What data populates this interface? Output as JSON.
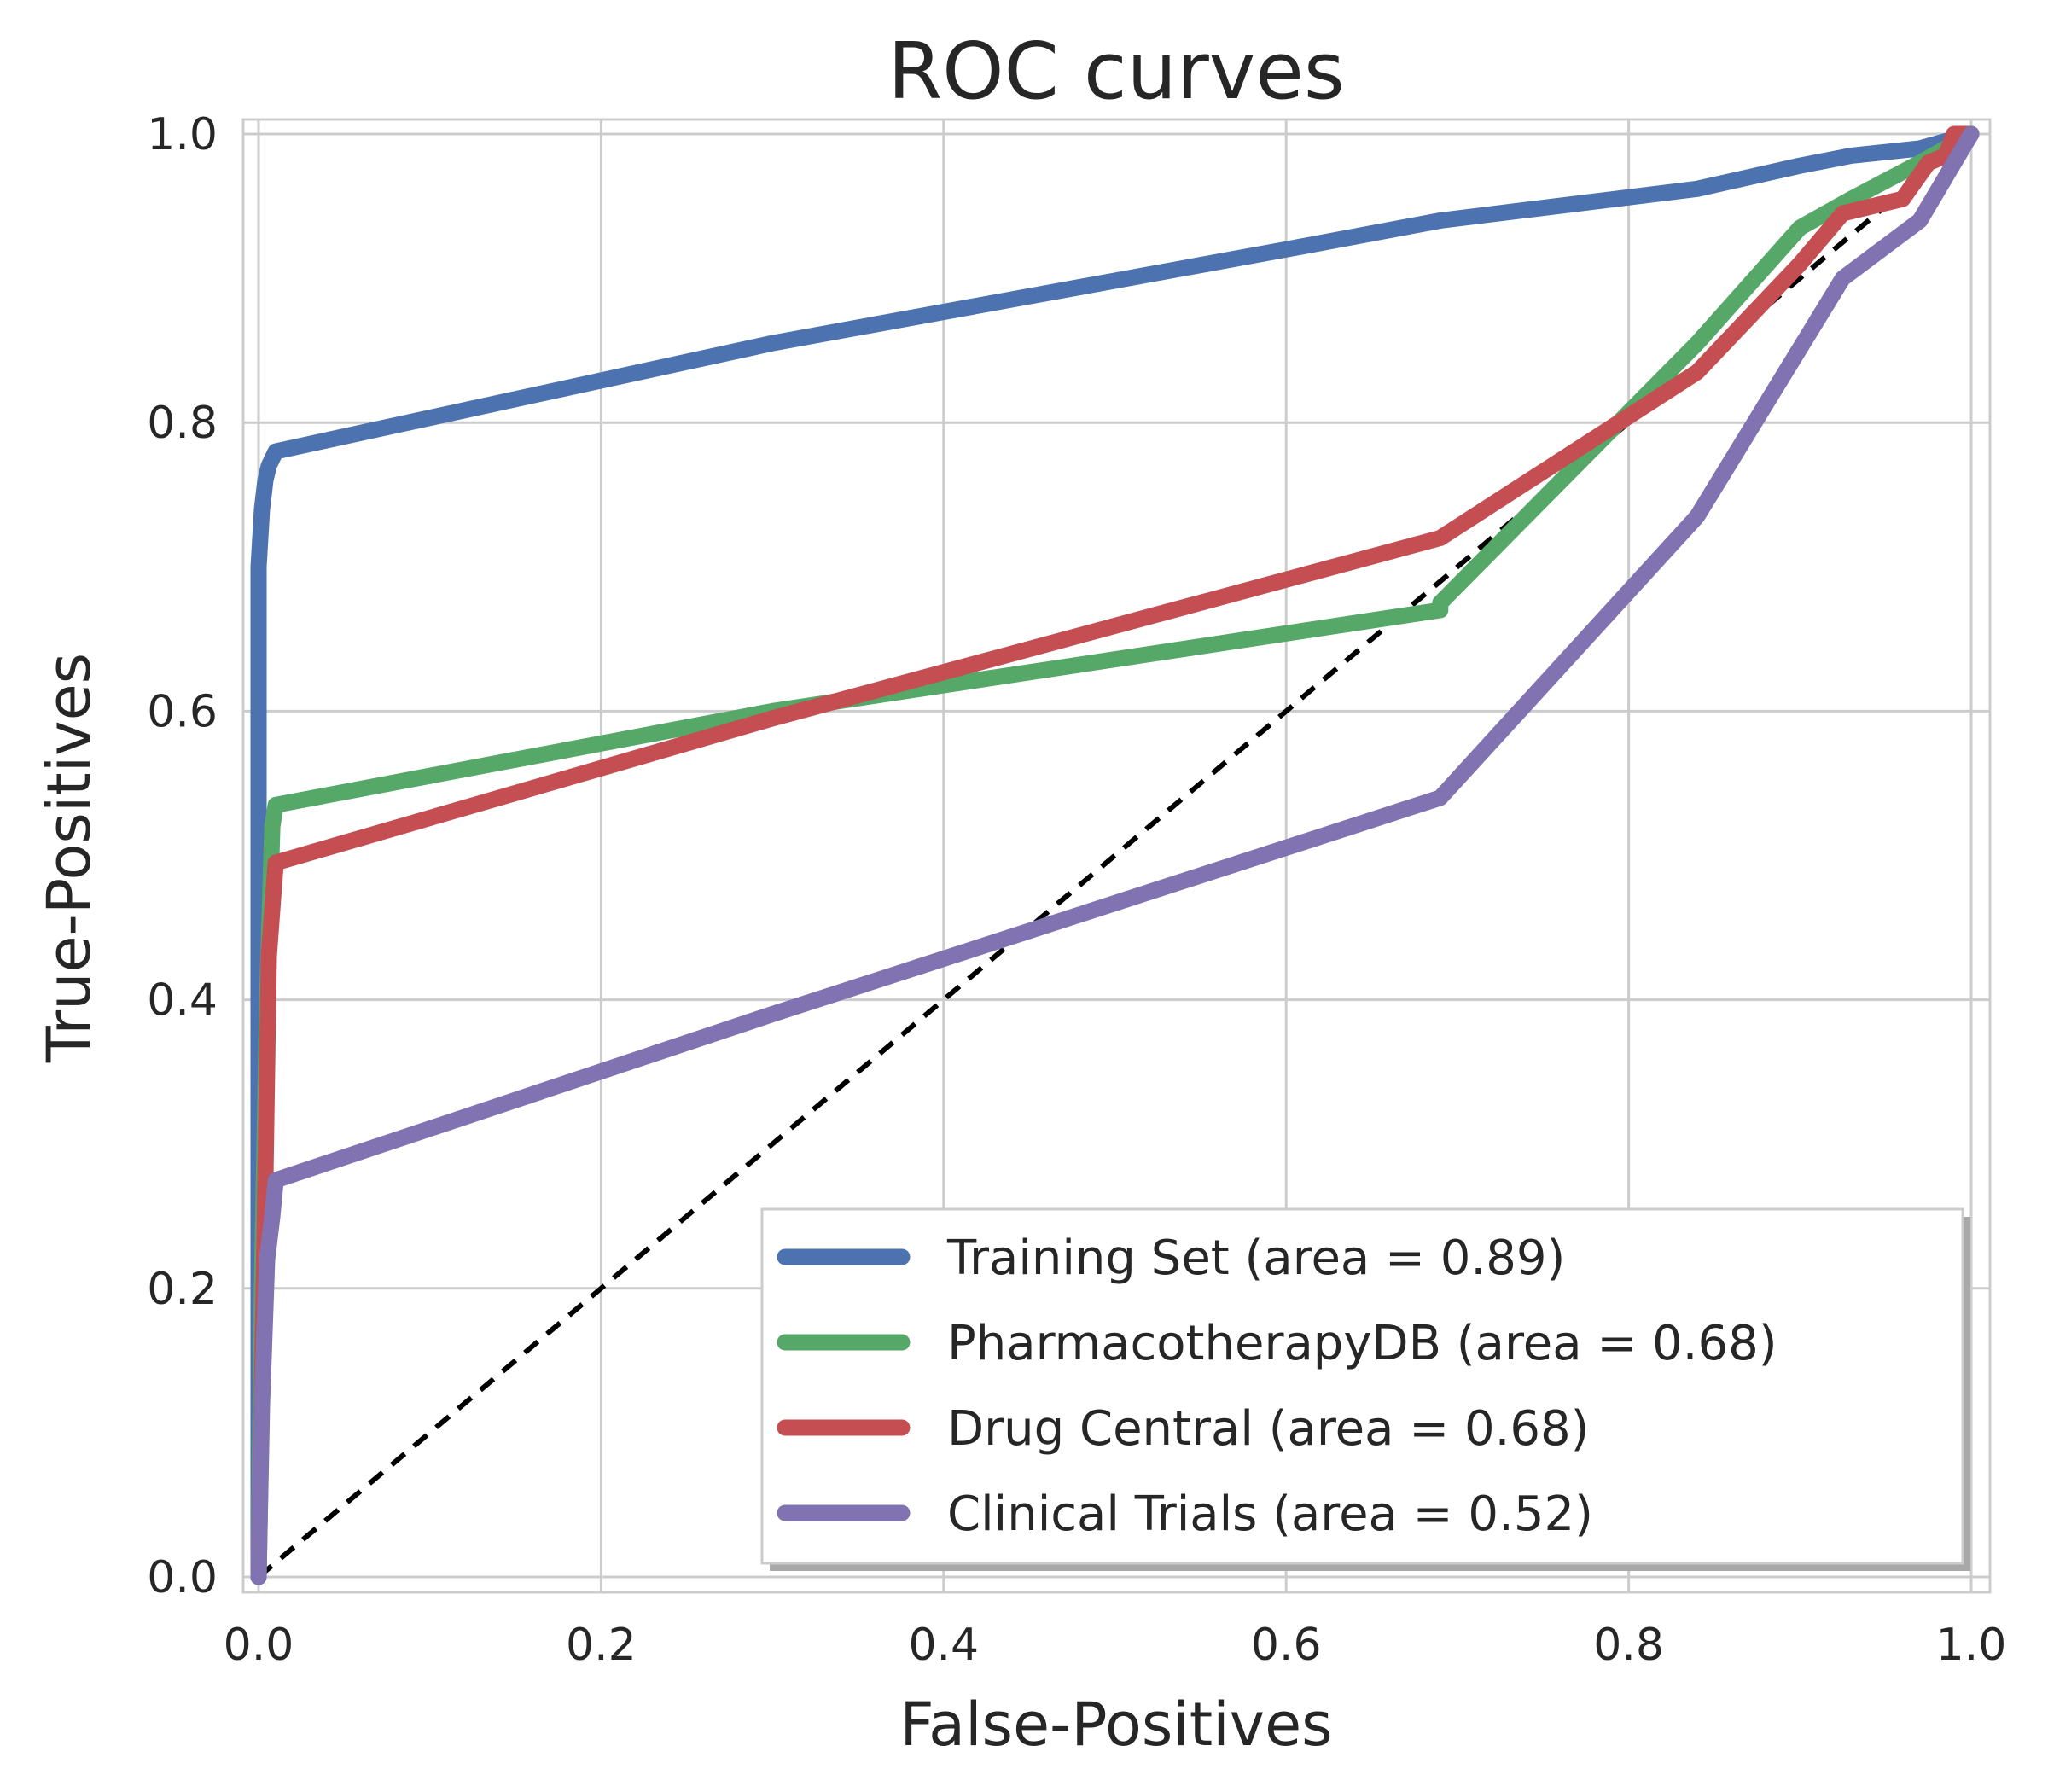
{
  "chart_data": {
    "type": "line",
    "title": "ROC curves",
    "xlabel": "False-Positives",
    "ylabel": "True-Positives",
    "xlim": [
      0.0,
      1.0
    ],
    "ylim": [
      0.0,
      1.0
    ],
    "xticks": [
      "0.0",
      "0.2",
      "0.4",
      "0.6",
      "0.8",
      "1.0"
    ],
    "yticks": [
      "0.0",
      "0.2",
      "0.4",
      "0.6",
      "0.8",
      "1.0"
    ],
    "grid": true,
    "legend_position": "lower-right",
    "diagonal": {
      "x": [
        0.0,
        1.0
      ],
      "y": [
        0.0,
        1.0
      ],
      "color": "#000000",
      "style": "dashed"
    },
    "series": [
      {
        "name": "Training Set (area = 0.89)",
        "color": "#4C72B0",
        "x": [
          0.0,
          0.0,
          0.0,
          0.002,
          0.004,
          0.006,
          0.01,
          0.3,
          0.6,
          0.69,
          0.84,
          0.9,
          0.93,
          0.97,
          1.0
        ],
        "y": [
          0.0,
          0.4,
          0.7,
          0.74,
          0.76,
          0.77,
          0.78,
          0.855,
          0.92,
          0.94,
          0.962,
          0.978,
          0.985,
          0.99,
          1.0
        ]
      },
      {
        "name": "PharmacotherapyDB (area = 0.68)",
        "color": "#55A868",
        "x": [
          0.0,
          0.002,
          0.005,
          0.008,
          0.01,
          0.3,
          0.69,
          0.69,
          0.84,
          0.9,
          0.93,
          0.97,
          1.0
        ],
        "y": [
          0.0,
          0.2,
          0.4,
          0.52,
          0.535,
          0.6,
          0.67,
          0.675,
          0.855,
          0.935,
          0.955,
          0.98,
          1.0
        ]
      },
      {
        "name": "Drug Central (area = 0.68)",
        "color": "#C44E52",
        "x": [
          0.0,
          0.003,
          0.006,
          0.01,
          0.3,
          0.69,
          0.84,
          0.9,
          0.925,
          0.96,
          0.975,
          0.985,
          0.99,
          1.0
        ],
        "y": [
          0.0,
          0.2,
          0.43,
          0.495,
          0.595,
          0.72,
          0.835,
          0.91,
          0.945,
          0.955,
          0.98,
          0.985,
          1.0,
          1.0
        ]
      },
      {
        "name": "Clinical Trials (area = 0.52)",
        "color": "#8172B2",
        "x": [
          0.0,
          0.002,
          0.005,
          0.008,
          0.01,
          0.3,
          0.69,
          0.84,
          0.925,
          0.97,
          0.98,
          0.99,
          1.0
        ],
        "y": [
          0.0,
          0.12,
          0.22,
          0.25,
          0.275,
          0.39,
          0.54,
          0.735,
          0.9,
          0.94,
          0.96,
          0.98,
          1.0
        ]
      }
    ]
  }
}
